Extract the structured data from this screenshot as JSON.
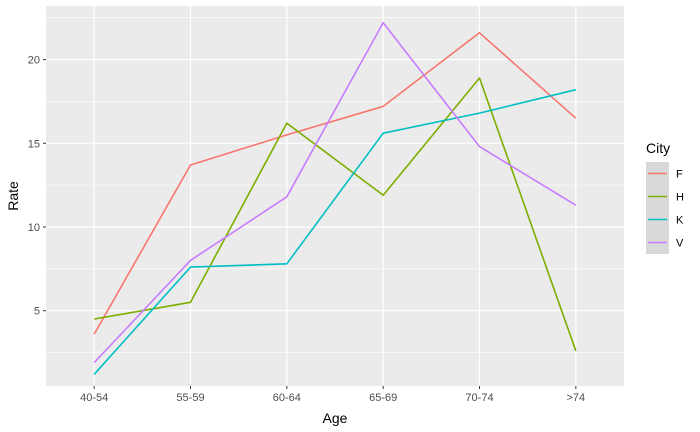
{
  "chart_data": {
    "type": "line",
    "xlabel": "Age",
    "ylabel": "Rate",
    "categories": [
      "40-54",
      "55-59",
      "60-64",
      "65-69",
      "70-74",
      ">74"
    ],
    "ylim": [
      0.5,
      23.2
    ],
    "yticks": [
      5,
      10,
      15,
      20
    ],
    "grid": true,
    "legend": {
      "title": "City",
      "placement": "right"
    },
    "series": [
      {
        "name": "F",
        "color": "#F8766D",
        "values": [
          3.6,
          13.7,
          15.5,
          17.2,
          21.6,
          16.5
        ]
      },
      {
        "name": "H",
        "color": "#7CAE00",
        "values": [
          4.5,
          5.5,
          16.2,
          11.9,
          18.9,
          2.6
        ]
      },
      {
        "name": "K",
        "color": "#00BFC4",
        "values": [
          1.2,
          7.6,
          7.8,
          15.6,
          16.8,
          18.2
        ]
      },
      {
        "name": "V",
        "color": "#C77CFF",
        "values": [
          1.9,
          8.0,
          11.8,
          22.2,
          14.8,
          11.3
        ]
      }
    ]
  },
  "colors": {
    "panel_background": "#EBEBEB",
    "grid_major": "#FFFFFF",
    "legend_key_background": "#D9D9D9"
  }
}
